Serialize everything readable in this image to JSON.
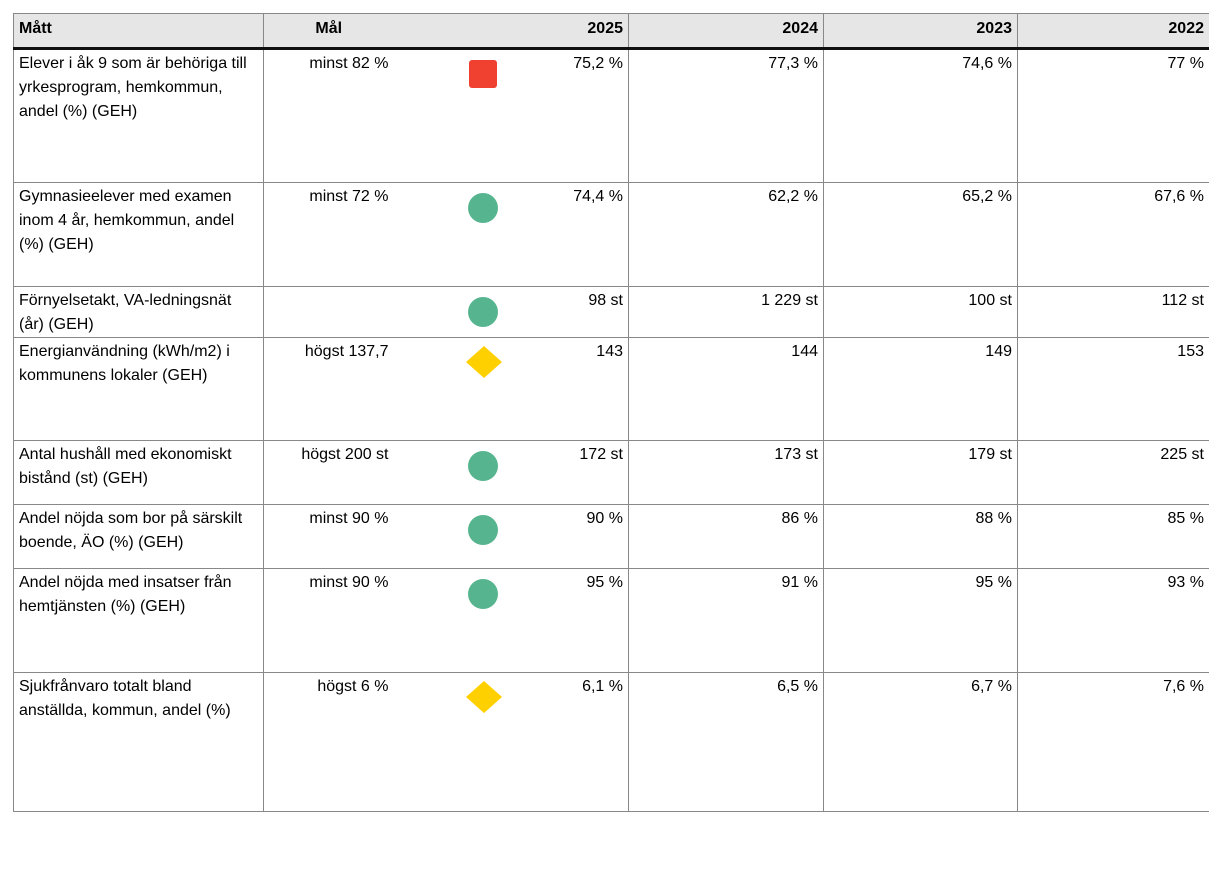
{
  "table": {
    "header": [
      "Mått",
      "Mål",
      "",
      "2025",
      "2024",
      "2023",
      "2022"
    ],
    "rows": [
      {
        "measure": "Elever i åk 9 som är behöriga till yrkesprogram, hemkommun, andel (%) (GEH)",
        "target": "minst 82 %",
        "status_color": "#f04030",
        "status_shape": "square",
        "values": [
          "75,2 %",
          "77,3 %",
          "74,6 %",
          "77 %"
        ]
      },
      {
        "measure": "Gymnasieelever med examen inom 4 år, hemkommun, andel (%) (GEH)",
        "target": "minst 72 %",
        "status_color": "#56b58e",
        "status_shape": "circle",
        "values": [
          "74,4 %",
          "62,2 %",
          "65,2 %",
          "67,6 %"
        ]
      },
      {
        "measure": "Förnyelsetakt, VA-ledningsnät (år) (GEH)",
        "target": "",
        "status_color": "#56b58e",
        "status_shape": "circle",
        "values": [
          "98 st",
          "1 229 st",
          "100 st",
          "112 st"
        ]
      },
      {
        "measure": "Energianvändning (kWh/m2) i kommunens lokaler (GEH)",
        "target": "högst 137,7",
        "status_color": "#ffd000",
        "status_shape": "diamond",
        "values": [
          "143",
          "144",
          "149",
          "153"
        ]
      },
      {
        "measure": "Antal hushåll med ekonomiskt bistånd (st) (GEH)",
        "target": "högst 200 st",
        "status_color": "#56b58e",
        "status_shape": "circle",
        "values": [
          "172 st",
          "173 st",
          "179 st",
          "225 st"
        ]
      },
      {
        "measure": "Andel nöjda som bor på särskilt boende, ÄO (%) (GEH)",
        "target": "minst 90 %",
        "status_color": "#56b58e",
        "status_shape": "circle",
        "values": [
          "90 %",
          "86 %",
          "88 %",
          "85 %"
        ]
      },
      {
        "measure": "Andel nöjda med insatser från hemtjänsten (%) (GEH)",
        "target": "minst 90 %",
        "status_color": "#56b58e",
        "status_shape": "circle",
        "values": [
          "95 %",
          "91 %",
          "95 %",
          "93 %"
        ]
      },
      {
        "measure": "Sjukfrånvaro totalt bland anställda, kommun, andel (%)",
        "target": "högst 6 %",
        "status_color": "#ffd000",
        "status_shape": "diamond",
        "values": [
          "6,1 %",
          "6,5 %",
          "6,7 %",
          "7,6 %"
        ]
      }
    ]
  }
}
